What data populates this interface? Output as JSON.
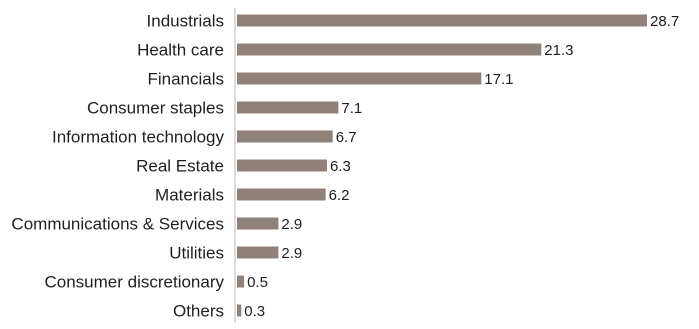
{
  "chart_data": {
    "type": "bar",
    "orientation": "horizontal",
    "categories": [
      "Industrials",
      "Health care",
      "Financials",
      "Consumer staples",
      "Information technology",
      "Real Estate",
      "Materials",
      "Communications & Services",
      "Utilities",
      "Consumer discretionary",
      "Others"
    ],
    "values": [
      28.7,
      21.3,
      17.1,
      7.1,
      6.7,
      6.3,
      6.2,
      2.9,
      2.9,
      0.5,
      0.3
    ],
    "value_labels": [
      "28.7",
      "21.3",
      "17.1",
      "7.1",
      "6.7",
      "6.3",
      "6.2",
      "2.9",
      "2.9",
      "0.5",
      "0.3"
    ],
    "title": "",
    "xlabel": "",
    "ylabel": "",
    "xlim": [
      0,
      28.7
    ],
    "grid": false,
    "legend": "none",
    "bar_color": "#8f827b",
    "axis_color": "#b9b9b9"
  }
}
